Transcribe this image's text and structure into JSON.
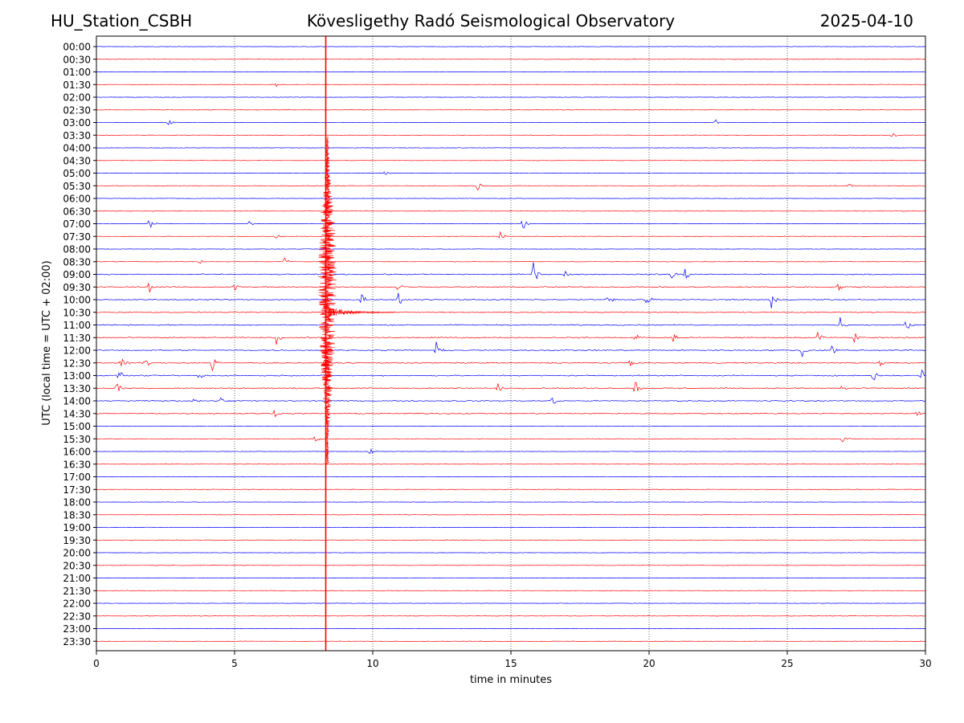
{
  "header": {
    "station": "HU_Station_CSBH",
    "observatory": "Kövesligethy Radó Seismological Observatory",
    "date": "2025-04-10"
  },
  "chart_data": {
    "type": "line",
    "title": "Kövesligethy Radó Seismological Observatory",
    "xlabel": "time in minutes",
    "ylabel": "UTC (local time = UTC + 02:00)",
    "xlim": [
      0,
      30
    ],
    "x_ticks": [
      0,
      5,
      10,
      15,
      20,
      25,
      30
    ],
    "x_tick_labels": [
      "0",
      "5",
      "10",
      "15",
      "20",
      "25",
      "30"
    ],
    "vertical_grid_minutes": [
      5,
      10,
      15,
      20,
      25
    ],
    "trace_labels": [
      "00:00",
      "00:30",
      "01:00",
      "01:30",
      "02:00",
      "02:30",
      "03:00",
      "03:30",
      "04:00",
      "04:30",
      "05:00",
      "05:30",
      "06:00",
      "06:30",
      "07:00",
      "07:30",
      "08:00",
      "08:30",
      "09:00",
      "09:30",
      "10:00",
      "10:30",
      "11:00",
      "11:30",
      "12:00",
      "12:30",
      "13:00",
      "13:30",
      "14:00",
      "14:30",
      "15:00",
      "15:30",
      "16:00",
      "16:30",
      "17:00",
      "17:30",
      "18:00",
      "18:30",
      "19:00",
      "19:30",
      "20:00",
      "20:30",
      "21:00",
      "21:30",
      "22:00",
      "22:30",
      "23:00",
      "23:30"
    ],
    "trace_colors": [
      "#0000ff",
      "#ff0000"
    ],
    "event": {
      "time_minutes": 8.3,
      "color": "#ff0000",
      "strong_motion_rows": [
        "05:00",
        "16:30"
      ]
    },
    "noisy_rows": [
      "09:00",
      "09:30",
      "10:00",
      "10:30",
      "11:00",
      "11:30",
      "12:00",
      "12:30",
      "13:00",
      "13:30",
      "14:00",
      "14:30"
    ],
    "bursts": [
      {
        "row": "01:30",
        "minute": 6.5,
        "amp": 0.25
      },
      {
        "row": "03:00",
        "minute": 2.6,
        "amp": 0.25
      },
      {
        "row": "03:00",
        "minute": 22.4,
        "amp": 0.2
      },
      {
        "row": "03:30",
        "minute": 28.8,
        "amp": 0.25
      },
      {
        "row": "05:00",
        "minute": 10.4,
        "amp": 0.25
      },
      {
        "row": "05:30",
        "minute": 13.8,
        "amp": 0.3
      },
      {
        "row": "05:30",
        "minute": 27.2,
        "amp": 0.25
      },
      {
        "row": "07:00",
        "minute": 1.9,
        "amp": 0.45
      },
      {
        "row": "07:00",
        "minute": 15.4,
        "amp": 0.5
      },
      {
        "row": "07:00",
        "minute": 5.5,
        "amp": 0.3
      },
      {
        "row": "07:30",
        "minute": 6.5,
        "amp": 0.35
      },
      {
        "row": "07:30",
        "minute": 14.6,
        "amp": 0.35
      },
      {
        "row": "08:30",
        "minute": 6.8,
        "amp": 0.3
      },
      {
        "row": "08:30",
        "minute": 3.7,
        "amp": 0.2
      },
      {
        "row": "09:00",
        "minute": 15.8,
        "amp": 0.9
      },
      {
        "row": "09:00",
        "minute": 16.9,
        "amp": 0.5
      },
      {
        "row": "09:00",
        "minute": 20.8,
        "amp": 0.45
      },
      {
        "row": "09:00",
        "minute": 21.3,
        "amp": 0.45
      },
      {
        "row": "09:30",
        "minute": 1.9,
        "amp": 0.8
      },
      {
        "row": "09:30",
        "minute": 5.0,
        "amp": 0.4
      },
      {
        "row": "09:30",
        "minute": 10.9,
        "amp": 0.5
      },
      {
        "row": "09:30",
        "minute": 26.8,
        "amp": 0.35
      },
      {
        "row": "10:00",
        "minute": 9.6,
        "amp": 0.5
      },
      {
        "row": "10:00",
        "minute": 10.9,
        "amp": 0.7
      },
      {
        "row": "10:00",
        "minute": 18.5,
        "amp": 0.5
      },
      {
        "row": "10:00",
        "minute": 19.9,
        "amp": 0.6
      },
      {
        "row": "10:00",
        "minute": 24.4,
        "amp": 0.7
      },
      {
        "row": "11:00",
        "minute": 26.9,
        "amp": 0.6
      },
      {
        "row": "11:00",
        "minute": 29.3,
        "amp": 0.8
      },
      {
        "row": "11:30",
        "minute": 6.5,
        "amp": 0.6
      },
      {
        "row": "11:30",
        "minute": 19.5,
        "amp": 0.5
      },
      {
        "row": "11:30",
        "minute": 20.8,
        "amp": 0.6
      },
      {
        "row": "11:30",
        "minute": 26.1,
        "amp": 0.5
      },
      {
        "row": "11:30",
        "minute": 27.4,
        "amp": 0.5
      },
      {
        "row": "12:00",
        "minute": 12.3,
        "amp": 0.6
      },
      {
        "row": "12:00",
        "minute": 25.5,
        "amp": 0.6
      },
      {
        "row": "12:00",
        "minute": 26.6,
        "amp": 0.4
      },
      {
        "row": "12:30",
        "minute": 0.9,
        "amp": 0.8
      },
      {
        "row": "12:30",
        "minute": 1.7,
        "amp": 0.7
      },
      {
        "row": "12:30",
        "minute": 4.2,
        "amp": 0.5
      },
      {
        "row": "12:30",
        "minute": 19.3,
        "amp": 0.4
      },
      {
        "row": "12:30",
        "minute": 28.3,
        "amp": 0.4
      },
      {
        "row": "13:00",
        "minute": 0.8,
        "amp": 0.5
      },
      {
        "row": "13:00",
        "minute": 3.7,
        "amp": 0.5
      },
      {
        "row": "13:00",
        "minute": 28.1,
        "amp": 0.5
      },
      {
        "row": "13:00",
        "minute": 29.8,
        "amp": 0.8
      },
      {
        "row": "13:30",
        "minute": 0.7,
        "amp": 0.5
      },
      {
        "row": "13:30",
        "minute": 14.5,
        "amp": 0.4
      },
      {
        "row": "13:30",
        "minute": 19.5,
        "amp": 0.5
      },
      {
        "row": "13:30",
        "minute": 27.0,
        "amp": 0.35
      },
      {
        "row": "14:00",
        "minute": 3.5,
        "amp": 0.3
      },
      {
        "row": "14:00",
        "minute": 4.5,
        "amp": 0.4
      },
      {
        "row": "14:00",
        "minute": 16.5,
        "amp": 0.4
      },
      {
        "row": "14:30",
        "minute": 6.4,
        "amp": 0.35
      },
      {
        "row": "14:30",
        "minute": 29.7,
        "amp": 0.3
      },
      {
        "row": "15:30",
        "minute": 7.9,
        "amp": 0.4
      },
      {
        "row": "15:30",
        "minute": 27.0,
        "amp": 0.25
      },
      {
        "row": "16:00",
        "minute": 9.9,
        "amp": 0.25
      }
    ]
  }
}
